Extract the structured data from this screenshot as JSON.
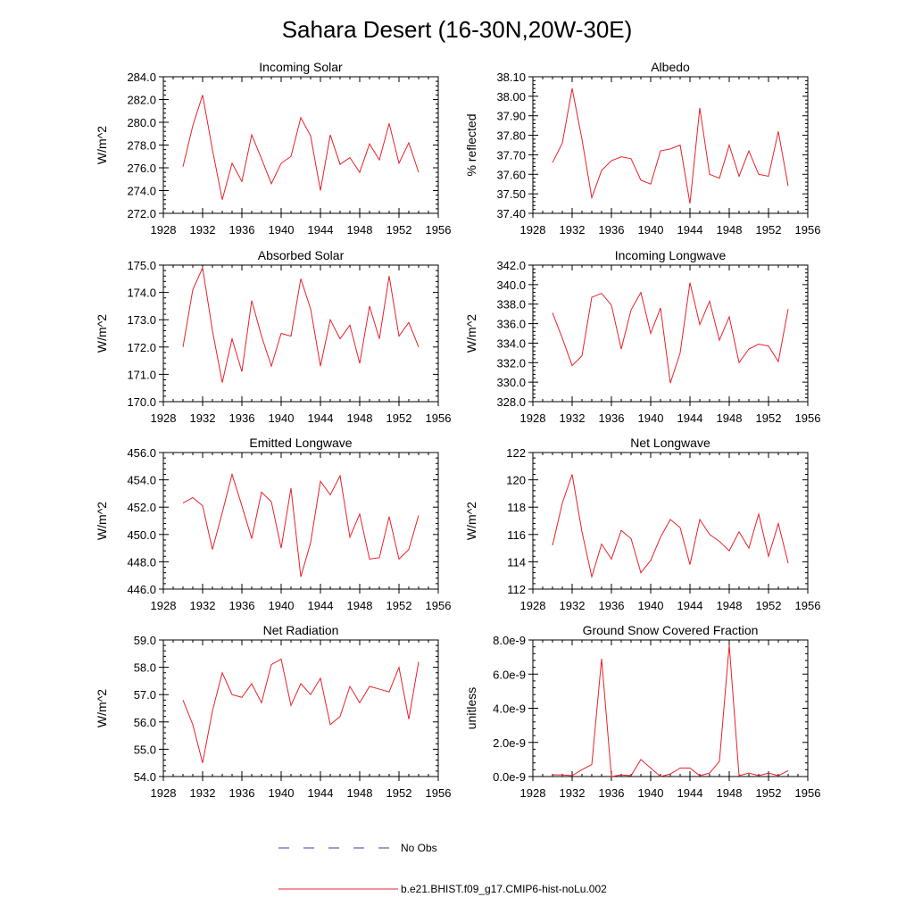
{
  "figure": {
    "title": "Sahara Desert (16-30N,20W-30E)",
    "legend": [
      {
        "label": "No Obs",
        "color": "#3b3bb8",
        "dash": "dashed"
      },
      {
        "label": "b.e21.BHIST.f09_g17.CMIP6-hist-noLu.002",
        "color": "#e8202a",
        "dash": "solid"
      }
    ],
    "series_color": "#e8202a"
  },
  "chart_data": [
    {
      "type": "line",
      "title": "Incoming Solar",
      "ylabel": "W/m^2",
      "xlim": [
        1928,
        1956
      ],
      "xticks": [
        "1928",
        "1932",
        "1936",
        "1940",
        "1944",
        "1948",
        "1952",
        "1956"
      ],
      "ylim": [
        272,
        284
      ],
      "yticks": [
        "272.0",
        "274.0",
        "276.0",
        "278.0",
        "280.0",
        "282.0",
        "284.0"
      ],
      "x": [
        1930,
        1931,
        1932,
        1933,
        1934,
        1935,
        1936,
        1937,
        1938,
        1939,
        1940,
        1941,
        1942,
        1943,
        1944,
        1945,
        1946,
        1947,
        1948,
        1949,
        1950,
        1951,
        1952,
        1953,
        1954
      ],
      "y": [
        276.1,
        279.7,
        282.4,
        277.6,
        273.2,
        276.4,
        274.8,
        278.9,
        276.8,
        274.6,
        276.4,
        277.0,
        280.4,
        278.8,
        274.0,
        278.9,
        276.3,
        276.9,
        275.6,
        278.1,
        276.7,
        279.9,
        276.4,
        278.2,
        275.6
      ]
    },
    {
      "type": "line",
      "title": "Albedo",
      "ylabel": "% reflected",
      "xlim": [
        1928,
        1956
      ],
      "xticks": [
        "1928",
        "1932",
        "1936",
        "1940",
        "1944",
        "1948",
        "1952",
        "1956"
      ],
      "ylim": [
        37.4,
        38.1
      ],
      "yticks": [
        "37.40",
        "37.50",
        "37.60",
        "37.70",
        "37.80",
        "37.90",
        "38.00",
        "38.10"
      ],
      "x": [
        1930,
        1931,
        1932,
        1933,
        1934,
        1935,
        1936,
        1937,
        1938,
        1939,
        1940,
        1941,
        1942,
        1943,
        1944,
        1945,
        1946,
        1947,
        1948,
        1949,
        1950,
        1951,
        1952,
        1953,
        1954
      ],
      "y": [
        37.66,
        37.76,
        38.04,
        37.78,
        37.48,
        37.62,
        37.67,
        37.69,
        37.68,
        37.57,
        37.55,
        37.72,
        37.73,
        37.75,
        37.45,
        37.94,
        37.6,
        37.58,
        37.75,
        37.59,
        37.72,
        37.6,
        37.59,
        37.82,
        37.54
      ]
    },
    {
      "type": "line",
      "title": "Absorbed Solar",
      "ylabel": "W/m^2",
      "xlim": [
        1928,
        1956
      ],
      "xticks": [
        "1928",
        "1932",
        "1936",
        "1940",
        "1944",
        "1948",
        "1952",
        "1956"
      ],
      "ylim": [
        170,
        175
      ],
      "yticks": [
        "170.0",
        "171.0",
        "172.0",
        "173.0",
        "174.0",
        "175.0"
      ],
      "x": [
        1930,
        1931,
        1932,
        1933,
        1934,
        1935,
        1936,
        1937,
        1938,
        1939,
        1940,
        1941,
        1942,
        1943,
        1944,
        1945,
        1946,
        1947,
        1948,
        1949,
        1950,
        1951,
        1952,
        1953,
        1954
      ],
      "y": [
        172.0,
        174.1,
        174.9,
        172.6,
        170.7,
        172.3,
        171.1,
        173.7,
        172.4,
        171.3,
        172.5,
        172.4,
        174.5,
        173.4,
        171.3,
        173.0,
        172.3,
        172.8,
        171.4,
        173.5,
        172.3,
        174.6,
        172.4,
        172.9,
        172.0
      ]
    },
    {
      "type": "line",
      "title": "Incoming Longwave",
      "ylabel": "W/m^2",
      "xlim": [
        1928,
        1956
      ],
      "xticks": [
        "1928",
        "1932",
        "1936",
        "1940",
        "1944",
        "1948",
        "1952",
        "1956"
      ],
      "ylim": [
        328,
        342
      ],
      "yticks": [
        "328.0",
        "330.0",
        "332.0",
        "334.0",
        "336.0",
        "338.0",
        "340.0",
        "342.0"
      ],
      "x": [
        1930,
        1931,
        1932,
        1933,
        1934,
        1935,
        1936,
        1937,
        1938,
        1939,
        1940,
        1941,
        1942,
        1943,
        1944,
        1945,
        1946,
        1947,
        1948,
        1949,
        1950,
        1951,
        1952,
        1953,
        1954
      ],
      "y": [
        337.1,
        334.5,
        331.7,
        332.7,
        338.7,
        339.1,
        337.9,
        333.4,
        337.4,
        339.2,
        335.0,
        337.6,
        329.9,
        333.0,
        340.2,
        335.9,
        338.3,
        334.3,
        336.7,
        332.0,
        333.4,
        333.9,
        333.7,
        332.1,
        337.5
      ]
    },
    {
      "type": "line",
      "title": "Emitted Longwave",
      "ylabel": "W/m^2",
      "xlim": [
        1928,
        1956
      ],
      "xticks": [
        "1928",
        "1932",
        "1936",
        "1940",
        "1944",
        "1948",
        "1952",
        "1956"
      ],
      "ylim": [
        446,
        456
      ],
      "yticks": [
        "446.0",
        "448.0",
        "450.0",
        "452.0",
        "454.0",
        "456.0"
      ],
      "x": [
        1930,
        1931,
        1932,
        1933,
        1934,
        1935,
        1936,
        1937,
        1938,
        1939,
        1940,
        1941,
        1942,
        1943,
        1944,
        1945,
        1946,
        1947,
        1948,
        1949,
        1950,
        1951,
        1952,
        1953,
        1954
      ],
      "y": [
        452.3,
        452.7,
        452.1,
        448.9,
        451.6,
        454.4,
        452.1,
        449.7,
        453.1,
        452.4,
        449.0,
        453.4,
        446.9,
        449.4,
        453.9,
        452.9,
        454.3,
        449.8,
        451.5,
        448.2,
        448.3,
        451.3,
        448.2,
        448.9,
        451.4
      ]
    },
    {
      "type": "line",
      "title": "Net Longwave",
      "ylabel": "W/m^2",
      "xlim": [
        1928,
        1956
      ],
      "xticks": [
        "1928",
        "1932",
        "1936",
        "1940",
        "1944",
        "1948",
        "1952",
        "1956"
      ],
      "ylim": [
        112,
        122
      ],
      "yticks": [
        "112",
        "114",
        "116",
        "118",
        "120",
        "122"
      ],
      "x": [
        1930,
        1931,
        1932,
        1933,
        1934,
        1935,
        1936,
        1937,
        1938,
        1939,
        1940,
        1941,
        1942,
        1943,
        1944,
        1945,
        1946,
        1947,
        1948,
        1949,
        1950,
        1951,
        1952,
        1953,
        1954
      ],
      "y": [
        115.2,
        118.3,
        120.4,
        116.2,
        112.9,
        115.3,
        114.2,
        116.3,
        115.7,
        113.2,
        114.1,
        115.8,
        117.1,
        116.5,
        113.8,
        117.1,
        116.0,
        115.5,
        114.8,
        116.2,
        115.0,
        117.5,
        114.4,
        116.8,
        113.9
      ]
    },
    {
      "type": "line",
      "title": "Net Radiation",
      "ylabel": "W/m^2",
      "xlim": [
        1928,
        1956
      ],
      "xticks": [
        "1928",
        "1932",
        "1936",
        "1940",
        "1944",
        "1948",
        "1952",
        "1956"
      ],
      "ylim": [
        54,
        59
      ],
      "yticks": [
        "54.0",
        "55.0",
        "56.0",
        "57.0",
        "58.0",
        "59.0"
      ],
      "x": [
        1930,
        1931,
        1932,
        1933,
        1934,
        1935,
        1936,
        1937,
        1938,
        1939,
        1940,
        1941,
        1942,
        1943,
        1944,
        1945,
        1946,
        1947,
        1948,
        1949,
        1950,
        1951,
        1952,
        1953,
        1954
      ],
      "y": [
        56.8,
        55.9,
        54.5,
        56.4,
        57.8,
        57.0,
        56.9,
        57.4,
        56.7,
        58.1,
        58.3,
        56.6,
        57.4,
        57.0,
        57.6,
        55.9,
        56.2,
        57.3,
        56.7,
        57.3,
        57.2,
        57.1,
        58.0,
        56.1,
        58.2
      ]
    },
    {
      "type": "line",
      "title": "Ground Snow Covered Fraction",
      "ylabel": "unitless",
      "xlim": [
        1928,
        1956
      ],
      "xticks": [
        "1928",
        "1932",
        "1936",
        "1940",
        "1944",
        "1948",
        "1952",
        "1956"
      ],
      "ylim": [
        0,
        8e-09
      ],
      "yticks": [
        "0.0e-9",
        "2.0e-9",
        "4.0e-9",
        "6.0e-9",
        "8.0e-9"
      ],
      "x": [
        1930,
        1931,
        1932,
        1933,
        1934,
        1935,
        1936,
        1937,
        1938,
        1939,
        1940,
        1941,
        1942,
        1943,
        1944,
        1945,
        1946,
        1947,
        1948,
        1949,
        1950,
        1951,
        1952,
        1953,
        1954
      ],
      "y": [
        1e-10,
        1e-10,
        5e-11,
        4e-10,
        7e-10,
        6.9e-09,
        0.0,
        1e-10,
        5e-11,
        1e-09,
        5e-10,
        0.0,
        1.5e-10,
        5e-10,
        5e-10,
        5e-11,
        2e-10,
        9e-10,
        7.7e-09,
        5e-11,
        2e-10,
        5e-11,
        2e-10,
        5e-11,
        3.5e-10
      ]
    }
  ]
}
